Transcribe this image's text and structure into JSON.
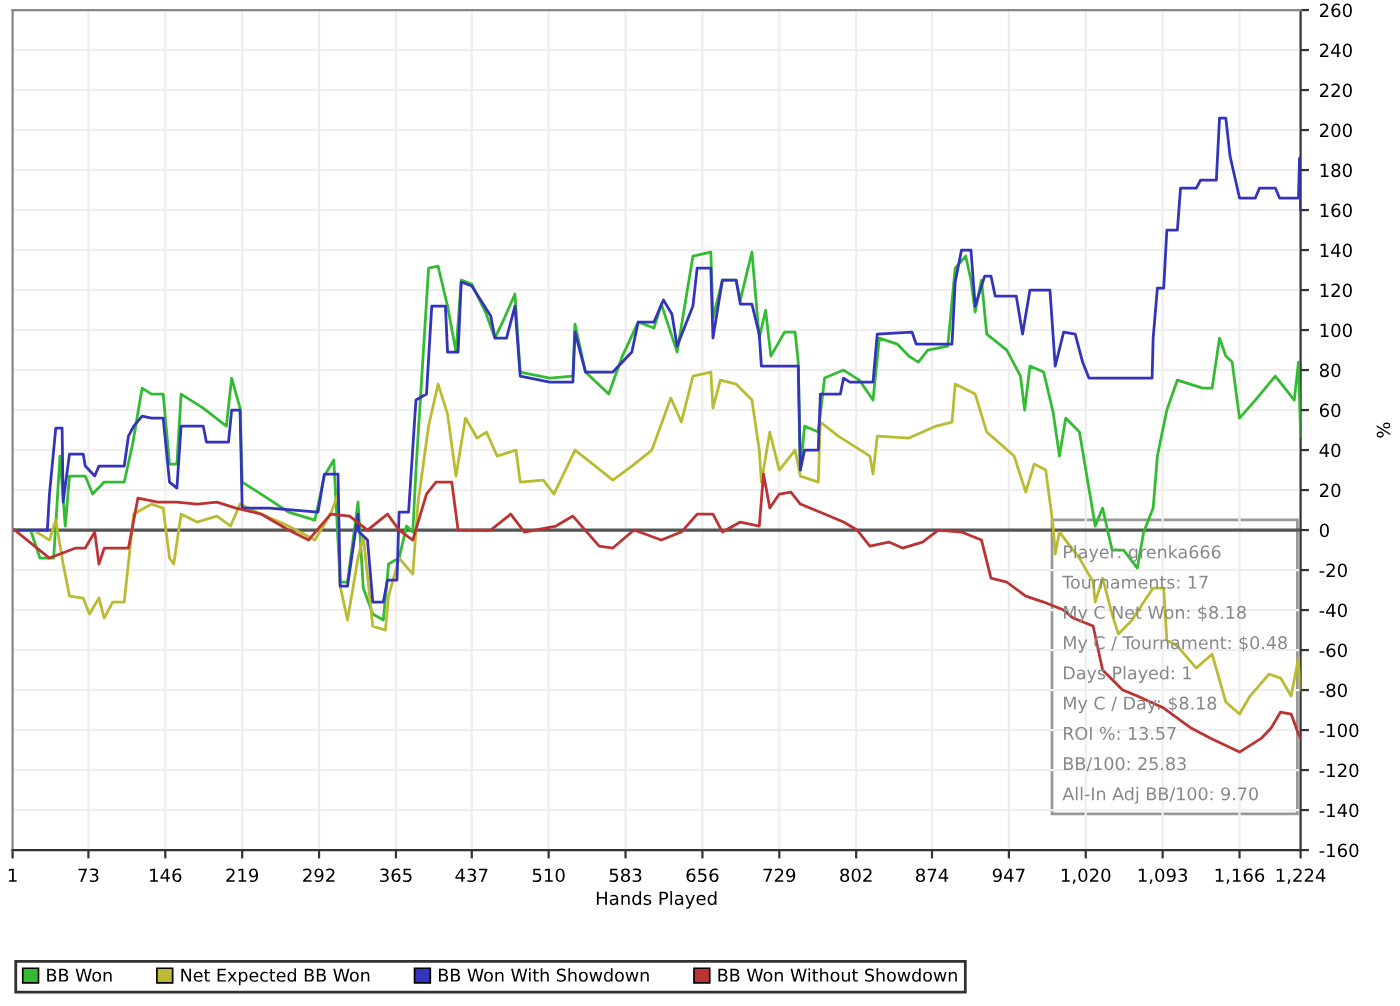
{
  "chart_data": {
    "type": "line",
    "xlabel": "Hands Played",
    "ylabel": "%",
    "xlim": [
      1,
      1224
    ],
    "ylim": [
      -160,
      260
    ],
    "xticks": [
      1,
      73,
      146,
      219,
      292,
      365,
      437,
      510,
      583,
      656,
      729,
      802,
      874,
      947,
      {
        "value": 1020,
        "label": "1,020"
      },
      {
        "value": 1093,
        "label": "1,093"
      },
      {
        "value": 1166,
        "label": "1,166"
      },
      {
        "value": 1224,
        "label": "1,224"
      }
    ],
    "yticks": [
      -160,
      -140,
      -120,
      -100,
      -80,
      -60,
      -40,
      -20,
      0,
      20,
      40,
      60,
      80,
      100,
      120,
      140,
      160,
      180,
      200,
      220,
      240,
      260
    ],
    "grid": true,
    "legend": "bottom",
    "marker": "none",
    "line_style": "solid",
    "ref_lines": [
      {
        "axis": "y",
        "value": 0,
        "color": "#555555"
      }
    ],
    "annotations": [
      "Player: grenka666",
      "Tournaments: 17",
      "My C Net Won: $8.18",
      "My C / Tournament: $0.48",
      "Days Played: 1",
      "My C / Day: $8.18",
      "ROI %: 13.57",
      "BB/100: 25.83",
      "All-In Adj BB/100: 9.70"
    ],
    "series": [
      {
        "name": "BB Won",
        "color": "#33bb33",
        "x": [
          3,
          18,
          27,
          40,
          46,
          51,
          55,
          70,
          77,
          88,
          107,
          115,
          124,
          133,
          144,
          150,
          157,
          161,
          182,
          204,
          209,
          217,
          219,
          237,
          263,
          288,
          297,
          306,
          312,
          319,
          329,
          334,
          343,
          353,
          358,
          368,
          375,
          381,
          384,
          396,
          405,
          414,
          422,
          427,
          437,
          450,
          459,
          468,
          478,
          483,
          511,
          533,
          535,
          545,
          567,
          580,
          595,
          610,
          617,
          632,
          647,
          664,
          666,
          675,
          688,
          692,
          703,
          710,
          716,
          721,
          734,
          744,
          747,
          749,
          753,
          766,
          772,
          790,
          805,
          818,
          824,
          841,
          852,
          861,
          870,
          889,
          896,
          906,
          911,
          915,
          921,
          926,
          945,
          958,
          962,
          967,
          980,
          989,
          995,
          1001,
          1014,
          1029,
          1036,
          1045,
          1056,
          1069,
          1075,
          1084,
          1088,
          1097,
          1107,
          1131,
          1140,
          1147,
          1153,
          1159,
          1166,
          1181,
          1200,
          1218,
          1222,
          1224
        ],
        "values": [
          0,
          0,
          -14,
          -14,
          37,
          2,
          27,
          27,
          18,
          24,
          24,
          43,
          71,
          68,
          68,
          33,
          33,
          68,
          61,
          52,
          76,
          61,
          24,
          18,
          9,
          5,
          27,
          35,
          -26,
          -26,
          14,
          -29,
          -42,
          -45,
          -17,
          -14,
          2,
          -1,
          30,
          131,
          132,
          112,
          89,
          125,
          123,
          109,
          96,
          106,
          118,
          79,
          76,
          77,
          103,
          79,
          68,
          87,
          104,
          101,
          113,
          89,
          137,
          139,
          106,
          125,
          125,
          115,
          139,
          96,
          110,
          87,
          99,
          99,
          84,
          30,
          52,
          49,
          76,
          80,
          75,
          65,
          96,
          93,
          87,
          84,
          90,
          92,
          131,
          137,
          125,
          109,
          125,
          98,
          90,
          77,
          60,
          82,
          79,
          59,
          37,
          56,
          49,
          2,
          11,
          -10,
          -10,
          -19,
          -1,
          11,
          37,
          60,
          75,
          71,
          71,
          96,
          87,
          84,
          56,
          65,
          77,
          65,
          84,
          47
        ]
      },
      {
        "name": "Net Expected BB Won",
        "color": "#bbbb33",
        "x": [
          3,
          21,
          36,
          42,
          49,
          55,
          68,
          74,
          83,
          88,
          96,
          107,
          116,
          133,
          144,
          150,
          154,
          161,
          176,
          195,
          208,
          217,
          237,
          263,
          288,
          303,
          310,
          312,
          319,
          329,
          334,
          343,
          355,
          358,
          368,
          381,
          386,
          396,
          405,
          414,
          422,
          431,
          442,
          451,
          461,
          479,
          483,
          505,
          515,
          535,
          552,
          571,
          589,
          608,
          626,
          636,
          647,
          664,
          666,
          673,
          688,
          703,
          710,
          712,
          720,
          729,
          744,
          749,
          766,
          768,
          785,
          815,
          818,
          822,
          852,
          878,
          893,
          896,
          915,
          926,
          952,
          963,
          971,
          982,
          989,
          991,
          995,
          1014,
          1027,
          1029,
          1036,
          1045,
          1051,
          1064,
          1075,
          1084,
          1094,
          1097,
          1107,
          1125,
          1140,
          1153,
          1166,
          1176,
          1194,
          1205,
          1215,
          1222,
          1224
        ],
        "values": [
          0,
          0,
          -5,
          5,
          -17,
          -33,
          -34,
          -42,
          -34,
          -44,
          -36,
          -36,
          8,
          13,
          11,
          -14,
          -17,
          8,
          4,
          7,
          2,
          13,
          8,
          2,
          -5,
          8,
          18,
          -28,
          -45,
          -14,
          -3,
          -48,
          -50,
          -33,
          -14,
          -22,
          14,
          52,
          73,
          58,
          27,
          56,
          46,
          49,
          37,
          40,
          24,
          25,
          18,
          40,
          33,
          25,
          32,
          40,
          66,
          54,
          77,
          79,
          61,
          75,
          73,
          65,
          40,
          24,
          49,
          30,
          40,
          27,
          24,
          54,
          47,
          37,
          28,
          47,
          46,
          52,
          54,
          73,
          68,
          49,
          37,
          19,
          33,
          30,
          2,
          -12,
          -1,
          -14,
          -26,
          -36,
          -24,
          -42,
          -52,
          -45,
          -36,
          -29,
          -29,
          -55,
          -58,
          -69,
          -62,
          -86,
          -92,
          -83,
          -72,
          -74,
          -83,
          -64,
          -80
        ]
      },
      {
        "name": "BB Won With Showdown",
        "color": "#3333bb",
        "x": [
          3,
          34,
          36,
          42,
          48,
          49,
          55,
          68,
          70,
          79,
          83,
          107,
          111,
          116,
          124,
          133,
          144,
          150,
          157,
          161,
          182,
          185,
          206,
          209,
          217,
          219,
          245,
          291,
          297,
          310,
          312,
          319,
          329,
          330,
          338,
          343,
          353,
          357,
          366,
          368,
          377,
          384,
          394,
          399,
          412,
          414,
          424,
          427,
          437,
          455,
          459,
          470,
          478,
          483,
          511,
          533,
          535,
          545,
          571,
          589,
          595,
          610,
          619,
          627,
          632,
          647,
          651,
          664,
          666,
          675,
          688,
          692,
          703,
          710,
          712,
          747,
          749,
          753,
          766,
          768,
          787,
          790,
          796,
          818,
          822,
          855,
          859,
          893,
          896,
          902,
          911,
          915,
          924,
          930,
          934,
          954,
          960,
          967,
          986,
          991,
          999,
          1010,
          1017,
          1023,
          1083,
          1084,
          1088,
          1094,
          1097,
          1107,
          1110,
          1125,
          1129,
          1144,
          1147,
          1153,
          1157,
          1166,
          1181,
          1185,
          1200,
          1204,
          1222,
          1223,
          1224
        ],
        "values": [
          0,
          0,
          18,
          51,
          51,
          14,
          38,
          38,
          32,
          27,
          32,
          32,
          47,
          52,
          57,
          56,
          56,
          24,
          21,
          52,
          52,
          44,
          44,
          60,
          60,
          11,
          11,
          9,
          28,
          28,
          -28,
          -28,
          8,
          -1,
          -5,
          -36,
          -36,
          -25,
          -25,
          9,
          9,
          65,
          68,
          112,
          112,
          89,
          89,
          124,
          122,
          107,
          96,
          96,
          112,
          77,
          74,
          74,
          99,
          79,
          79,
          89,
          104,
          104,
          115,
          108,
          92,
          112,
          131,
          131,
          96,
          125,
          125,
          113,
          113,
          98,
          82,
          82,
          30,
          40,
          40,
          68,
          68,
          76,
          74,
          74,
          98,
          99,
          93,
          93,
          124,
          140,
          140,
          112,
          127,
          127,
          117,
          117,
          98,
          120,
          120,
          82,
          99,
          98,
          84,
          76,
          76,
          96,
          121,
          121,
          150,
          150,
          171,
          171,
          175,
          175,
          206,
          206,
          187,
          166,
          166,
          171,
          171,
          166,
          166,
          186,
          160
        ]
      },
      {
        "name": "BB Won Without Showdown",
        "color": "#bb3333",
        "x": [
          3,
          36,
          61,
          70,
          79,
          83,
          88,
          111,
          120,
          139,
          157,
          176,
          195,
          213,
          237,
          263,
          282,
          303,
          321,
          338,
          357,
          368,
          381,
          394,
          403,
          418,
          424,
          455,
          474,
          487,
          517,
          533,
          558,
          571,
          591,
          617,
          636,
          651,
          666,
          675,
          692,
          710,
          714,
          720,
          729,
          740,
          749,
          772,
          790,
          803,
          815,
          833,
          846,
          865,
          880,
          902,
          921,
          930,
          945,
          963,
          980,
          999,
          1008,
          1027,
          1036,
          1055,
          1069,
          1094,
          1120,
          1138,
          1166,
          1187,
          1196,
          1205,
          1215,
          1222,
          1224
        ],
        "values": [
          0,
          -14,
          -9,
          -9,
          -1,
          -17,
          -9,
          -9,
          16,
          14,
          14,
          13,
          14,
          11,
          8,
          0,
          -5,
          8,
          7,
          0,
          8,
          0,
          -5,
          18,
          24,
          24,
          0,
          0,
          8,
          -1,
          2,
          7,
          -8,
          -9,
          0,
          -5,
          -1,
          8,
          8,
          -1,
          4,
          2,
          28,
          11,
          18,
          19,
          13,
          8,
          4,
          0,
          -8,
          -6,
          -9,
          -6,
          0,
          -1,
          -5,
          -24,
          -26,
          -33,
          -36,
          -40,
          -44,
          -48,
          -70,
          -80,
          -83,
          -89,
          -99,
          -104,
          -111,
          -104,
          -99,
          -91,
          -92,
          -102,
          -104
        ]
      }
    ]
  }
}
